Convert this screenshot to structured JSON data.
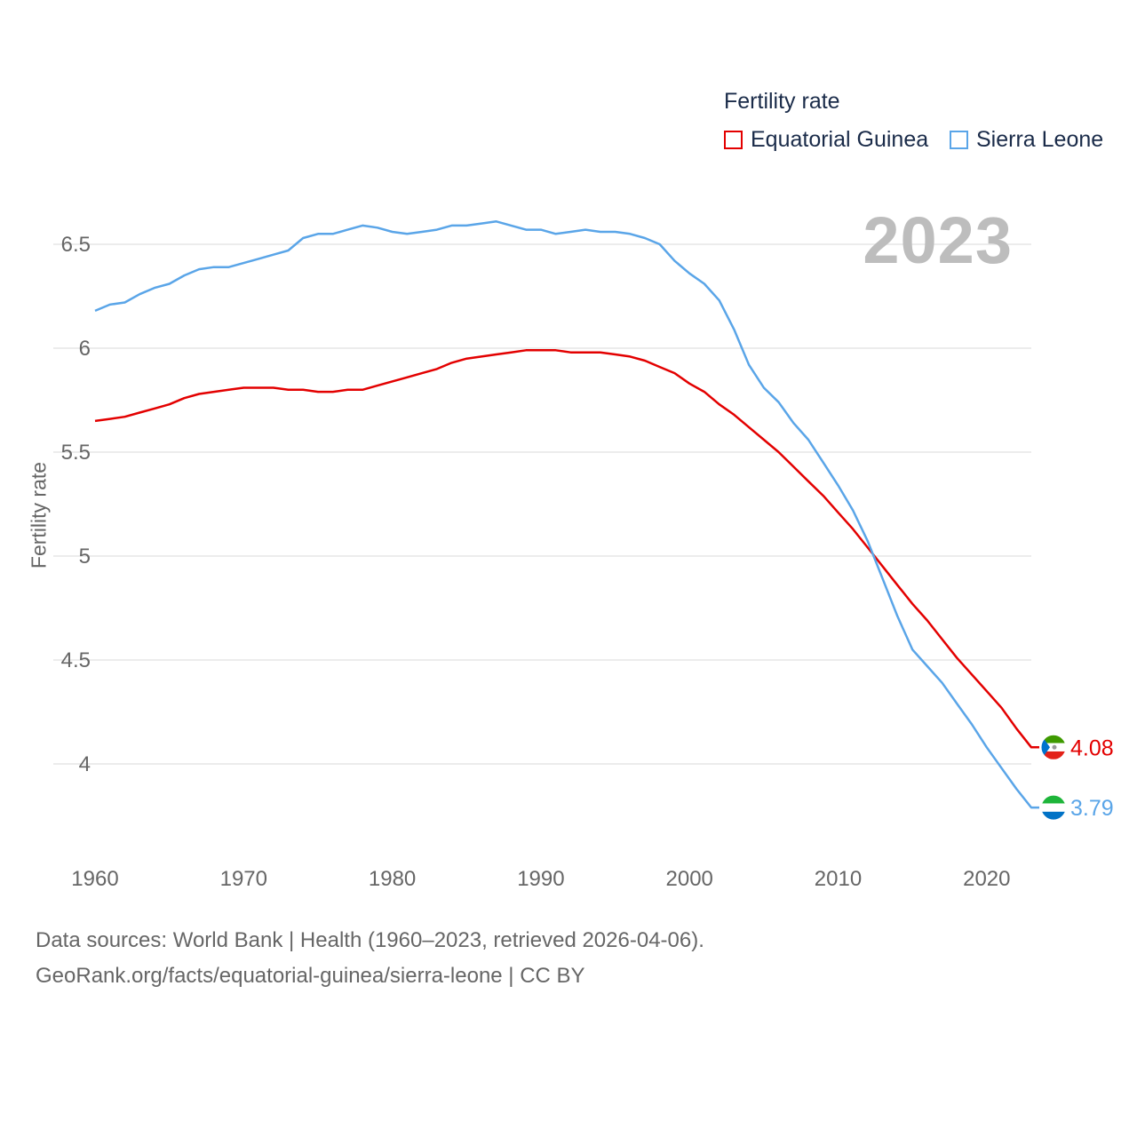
{
  "legend": {
    "title": "Fertility rate",
    "items": [
      {
        "label": "Equatorial Guinea",
        "color": "#e30000"
      },
      {
        "label": "Sierra Leone",
        "color": "#5aa5e8"
      }
    ]
  },
  "current_year": "2023",
  "source": {
    "line1": "Data sources: World Bank | Health (1960–2023, retrieved 2026-04-06).",
    "line2": "GeoRank.org/facts/equatorial-guinea/sierra-leone | CC BY"
  },
  "chart_data": {
    "type": "line",
    "title": "Fertility rate",
    "xlabel": "",
    "ylabel": "Fertility rate",
    "xlim": [
      1960,
      2023
    ],
    "ylim": [
      3.6,
      6.75
    ],
    "x_ticks": [
      1960,
      1970,
      1980,
      1990,
      2000,
      2010,
      2020
    ],
    "y_ticks": [
      4,
      4.5,
      5,
      5.5,
      6,
      6.5
    ],
    "y_tick_labels": [
      "4",
      "4.5",
      "5",
      "5.5",
      "6",
      "6.5"
    ],
    "grid": "horizontal",
    "legend_position": "top-right",
    "x": [
      1960,
      1961,
      1962,
      1963,
      1964,
      1965,
      1966,
      1967,
      1968,
      1969,
      1970,
      1971,
      1972,
      1973,
      1974,
      1975,
      1976,
      1977,
      1978,
      1979,
      1980,
      1981,
      1982,
      1983,
      1984,
      1985,
      1986,
      1987,
      1988,
      1989,
      1990,
      1991,
      1992,
      1993,
      1994,
      1995,
      1996,
      1997,
      1998,
      1999,
      2000,
      2001,
      2002,
      2003,
      2004,
      2005,
      2006,
      2007,
      2008,
      2009,
      2010,
      2011,
      2012,
      2013,
      2014,
      2015,
      2016,
      2017,
      2018,
      2019,
      2020,
      2021,
      2022,
      2023
    ],
    "series": [
      {
        "name": "Equatorial Guinea",
        "color": "#e30000",
        "end_label": "4.08",
        "values": [
          5.65,
          5.66,
          5.67,
          5.69,
          5.71,
          5.73,
          5.76,
          5.78,
          5.79,
          5.8,
          5.81,
          5.81,
          5.81,
          5.8,
          5.8,
          5.79,
          5.79,
          5.8,
          5.8,
          5.82,
          5.84,
          5.86,
          5.88,
          5.9,
          5.93,
          5.95,
          5.96,
          5.97,
          5.98,
          5.99,
          5.99,
          5.99,
          5.98,
          5.98,
          5.98,
          5.97,
          5.96,
          5.94,
          5.91,
          5.88,
          5.83,
          5.79,
          5.73,
          5.68,
          5.62,
          5.56,
          5.5,
          5.43,
          5.36,
          5.29,
          5.21,
          5.13,
          5.04,
          4.95,
          4.86,
          4.77,
          4.69,
          4.6,
          4.51,
          4.43,
          4.35,
          4.27,
          4.17,
          4.08
        ]
      },
      {
        "name": "Sierra Leone",
        "color": "#5aa5e8",
        "end_label": "3.79",
        "values": [
          6.18,
          6.21,
          6.22,
          6.26,
          6.29,
          6.31,
          6.35,
          6.38,
          6.39,
          6.39,
          6.41,
          6.43,
          6.45,
          6.47,
          6.53,
          6.55,
          6.55,
          6.57,
          6.59,
          6.58,
          6.56,
          6.55,
          6.56,
          6.57,
          6.59,
          6.59,
          6.6,
          6.61,
          6.59,
          6.57,
          6.57,
          6.55,
          6.56,
          6.57,
          6.56,
          6.56,
          6.55,
          6.53,
          6.5,
          6.42,
          6.36,
          6.31,
          6.23,
          6.09,
          5.92,
          5.81,
          5.74,
          5.64,
          5.56,
          5.45,
          5.34,
          5.22,
          5.07,
          4.89,
          4.71,
          4.55,
          4.47,
          4.39,
          4.29,
          4.19,
          4.08,
          3.98,
          3.88,
          3.79
        ]
      }
    ]
  }
}
